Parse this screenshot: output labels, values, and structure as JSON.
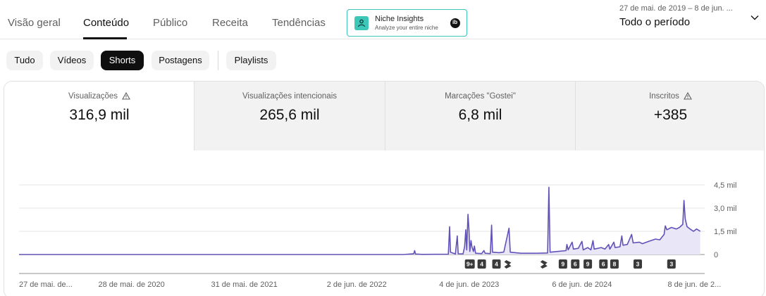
{
  "tabs": [
    {
      "label": "Visão geral",
      "active": false
    },
    {
      "label": "Conteúdo",
      "active": true
    },
    {
      "label": "Público",
      "active": false
    },
    {
      "label": "Receita",
      "active": false
    },
    {
      "label": "Tendências",
      "active": false
    }
  ],
  "niche": {
    "title": "Niche Insights",
    "subtitle": "Analyze your entire niche",
    "logo_icon": "niche-logo-icon",
    "close_icon": "close-icon"
  },
  "date_range": "27 de mai. de 2019 – 8 de jun. ...",
  "period": "Todo o período",
  "chips": [
    {
      "label": "Tudo",
      "active": false
    },
    {
      "label": "Vídeos",
      "active": false
    },
    {
      "label": "Shorts",
      "active": true
    },
    {
      "label": "Postagens",
      "active": false
    },
    {
      "label": "Playlists",
      "active": false
    }
  ],
  "metrics": [
    {
      "label": "Visualizações",
      "value": "316,9 mil",
      "warning": true,
      "active": true
    },
    {
      "label": "Visualizações intencionais",
      "value": "265,6 mil",
      "warning": false,
      "active": false
    },
    {
      "label": "Marcações \"Gostei\"",
      "value": "6,8 mil",
      "warning": false,
      "active": false
    },
    {
      "label": "Inscritos",
      "value": "+385",
      "warning": true,
      "active": false
    }
  ],
  "colors": {
    "line": "#6152b8",
    "fill": "#e8e6f7",
    "accent": "#3cc7b8"
  },
  "chart_data": {
    "type": "line",
    "series_color": "#6152b8",
    "y_ticks": [
      "0",
      "1,5 mil",
      "3,0 mil",
      "4,5 mil"
    ],
    "y_tick_values": [
      0,
      1500,
      3000,
      4500
    ],
    "ylim": [
      0,
      4500
    ],
    "x_tick_labels": [
      "27 de mai. de...",
      "28 de mai. de 2020",
      "31 de mai. de 2021",
      "2 de jun. de 2022",
      "4 de jun. de 2023",
      "6 de jun. de 2024",
      "8 de jun. de 2..."
    ],
    "x_tick_dates": [
      "2019-05-27",
      "2020-05-28",
      "2021-05-31",
      "2022-06-02",
      "2023-06-04",
      "2024-06-06",
      "2025-06-08"
    ],
    "xlim": [
      "2019-05-27",
      "2025-06-30"
    ],
    "points": [
      [
        "2019-05-27",
        0
      ],
      [
        "2022-11-01",
        0
      ],
      [
        "2022-12-05",
        50
      ],
      [
        "2022-12-08",
        250
      ],
      [
        "2022-12-11",
        30
      ],
      [
        "2023-01-01",
        10
      ],
      [
        "2023-03-28",
        20
      ],
      [
        "2023-04-01",
        1800
      ],
      [
        "2023-04-04",
        150
      ],
      [
        "2023-04-20",
        30
      ],
      [
        "2023-04-26",
        1200
      ],
      [
        "2023-04-29",
        50
      ],
      [
        "2023-05-15",
        40
      ],
      [
        "2023-05-20",
        500
      ],
      [
        "2023-05-24",
        1600
      ],
      [
        "2023-05-27",
        300
      ],
      [
        "2023-05-31",
        2600
      ],
      [
        "2023-06-03",
        1700
      ],
      [
        "2023-06-06",
        200
      ],
      [
        "2023-06-10",
        900
      ],
      [
        "2023-06-13",
        500
      ],
      [
        "2023-06-18",
        200
      ],
      [
        "2023-06-21",
        550
      ],
      [
        "2023-06-25",
        80
      ],
      [
        "2023-07-15",
        60
      ],
      [
        "2023-07-22",
        260
      ],
      [
        "2023-07-26",
        80
      ],
      [
        "2023-08-12",
        60
      ],
      [
        "2023-08-16",
        1900
      ],
      [
        "2023-08-19",
        150
      ],
      [
        "2023-09-10",
        120
      ],
      [
        "2023-09-25",
        160
      ],
      [
        "2023-10-12",
        1700
      ],
      [
        "2023-10-16",
        150
      ],
      [
        "2023-11-20",
        80
      ],
      [
        "2024-01-05",
        80
      ],
      [
        "2024-02-15",
        100
      ],
      [
        "2024-02-19",
        4350
      ],
      [
        "2024-02-23",
        150
      ],
      [
        "2024-03-20",
        200
      ],
      [
        "2024-04-15",
        250
      ],
      [
        "2024-04-18",
        650
      ],
      [
        "2024-04-22",
        300
      ],
      [
        "2024-05-05",
        800
      ],
      [
        "2024-05-09",
        350
      ],
      [
        "2024-05-25",
        400
      ],
      [
        "2024-06-06",
        850
      ],
      [
        "2024-06-10",
        300
      ],
      [
        "2024-06-25",
        450
      ],
      [
        "2024-07-05",
        300
      ],
      [
        "2024-07-12",
        900
      ],
      [
        "2024-07-16",
        350
      ],
      [
        "2024-08-08",
        450
      ],
      [
        "2024-08-20",
        350
      ],
      [
        "2024-09-01",
        650
      ],
      [
        "2024-09-05",
        350
      ],
      [
        "2024-09-18",
        800
      ],
      [
        "2024-09-22",
        450
      ],
      [
        "2024-10-08",
        500
      ],
      [
        "2024-10-14",
        1200
      ],
      [
        "2024-10-18",
        600
      ],
      [
        "2024-11-01",
        650
      ],
      [
        "2024-11-15",
        1300
      ],
      [
        "2024-11-20",
        750
      ],
      [
        "2024-12-10",
        800
      ],
      [
        "2024-12-20",
        700
      ],
      [
        "2025-01-10",
        850
      ],
      [
        "2025-02-01",
        1000
      ],
      [
        "2025-02-15",
        950
      ],
      [
        "2025-03-01",
        1300
      ],
      [
        "2025-03-05",
        1850
      ],
      [
        "2025-03-10",
        1600
      ],
      [
        "2025-03-25",
        1750
      ],
      [
        "2025-04-10",
        1650
      ],
      [
        "2025-04-20",
        1750
      ],
      [
        "2025-05-01",
        1950
      ],
      [
        "2025-05-05",
        3500
      ],
      [
        "2025-05-09",
        2300
      ],
      [
        "2025-05-15",
        1800
      ],
      [
        "2025-05-25",
        1650
      ],
      [
        "2025-06-05",
        1500
      ],
      [
        "2025-06-15",
        1650
      ],
      [
        "2025-06-27",
        1500
      ]
    ],
    "markers": [
      {
        "date": "2023-06-06",
        "label": "9+"
      },
      {
        "date": "2023-07-15",
        "label": "4"
      },
      {
        "date": "2023-09-01",
        "label": "4"
      },
      {
        "date": "2023-10-10",
        "label": "",
        "icon": "shorts-icon"
      },
      {
        "date": "2024-02-05",
        "label": "",
        "icon": "shorts-icon"
      },
      {
        "date": "2024-04-05",
        "label": "9"
      },
      {
        "date": "2024-05-15",
        "label": "6"
      },
      {
        "date": "2024-06-25",
        "label": "9"
      },
      {
        "date": "2024-08-15",
        "label": "6"
      },
      {
        "date": "2024-09-20",
        "label": "8"
      },
      {
        "date": "2024-12-05",
        "label": "3"
      },
      {
        "date": "2025-03-25",
        "label": "3"
      }
    ]
  }
}
